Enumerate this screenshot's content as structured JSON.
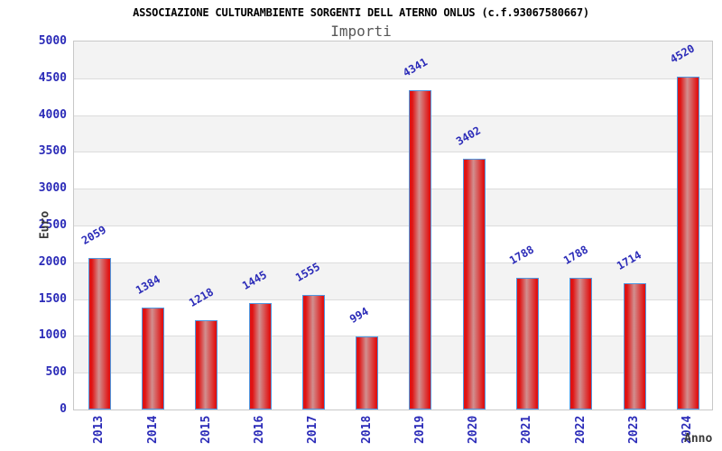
{
  "header": {
    "title": "ASSOCIAZIONE CULTURAMBIENTE SORGENTI DELL ATERNO ONLUS (c.f.93067580667)",
    "subtitle": "Importi"
  },
  "chart_data": {
    "type": "bar",
    "title": "ASSOCIAZIONE CULTURAMBIENTE SORGENTI DELL ATERNO ONLUS (c.f.93067580667)",
    "subtitle": "Importi",
    "categories": [
      "2013",
      "2014",
      "2015",
      "2016",
      "2017",
      "2018",
      "2019",
      "2020",
      "2021",
      "2022",
      "2023",
      "2024"
    ],
    "values": [
      2059,
      1384,
      1218,
      1445,
      1555,
      994,
      4341,
      3402,
      1788,
      1788,
      1714,
      4520
    ],
    "xlabel": "Anno",
    "ylabel": "Euro",
    "ylim": [
      0,
      5000
    ],
    "ytick_step": 500,
    "grid": true,
    "legend": "none",
    "bar_value_labels": true
  },
  "colors": {
    "label_blue": "#2b2bb8",
    "bar_border": "#4f97e0",
    "bar_red": "#e01313",
    "bar_center": "#d18f8f",
    "band_gray": "#f3f3f3",
    "band_white": "#ffffff",
    "gridline": "#dcdcdc",
    "plot_border": "#c8c8c8",
    "title_color": "#000000",
    "subtitle_color": "#585858",
    "axis_title_color": "#3a3a3a"
  }
}
